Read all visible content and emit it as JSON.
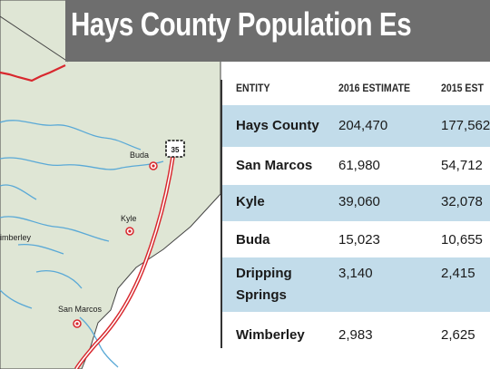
{
  "title": "Hays County Population Es",
  "map": {
    "highway_shield": "35",
    "cities": [
      {
        "name": "Buda"
      },
      {
        "name": "Kyle"
      },
      {
        "name": "imberley"
      },
      {
        "name": "San Marcos"
      }
    ]
  },
  "table": {
    "headers": [
      "ENTITY",
      "2016 ESTIMATE",
      "2015 EST"
    ],
    "rows": [
      {
        "entity": "Hays County",
        "est2016": "204,470",
        "est2015": "177,562"
      },
      {
        "entity": "San Marcos",
        "est2016": "61,980",
        "est2015": "54,712"
      },
      {
        "entity": "Kyle",
        "est2016": "39,060",
        "est2015": "32,078"
      },
      {
        "entity": "Buda",
        "est2016": "15,023",
        "est2015": "10,655"
      },
      {
        "entity": "Dripping Springs",
        "est2016": "3,140",
        "est2015": "2,415"
      },
      {
        "entity": "Wimberley",
        "est2016": "2,983",
        "est2015": "2,625"
      }
    ]
  },
  "colors": {
    "county_fill": "#dfe6d5",
    "river": "#5aa9d6",
    "highway": "#d8282e",
    "row_highlight": "#c2dcea",
    "title_bar": "#6e6e6e"
  }
}
